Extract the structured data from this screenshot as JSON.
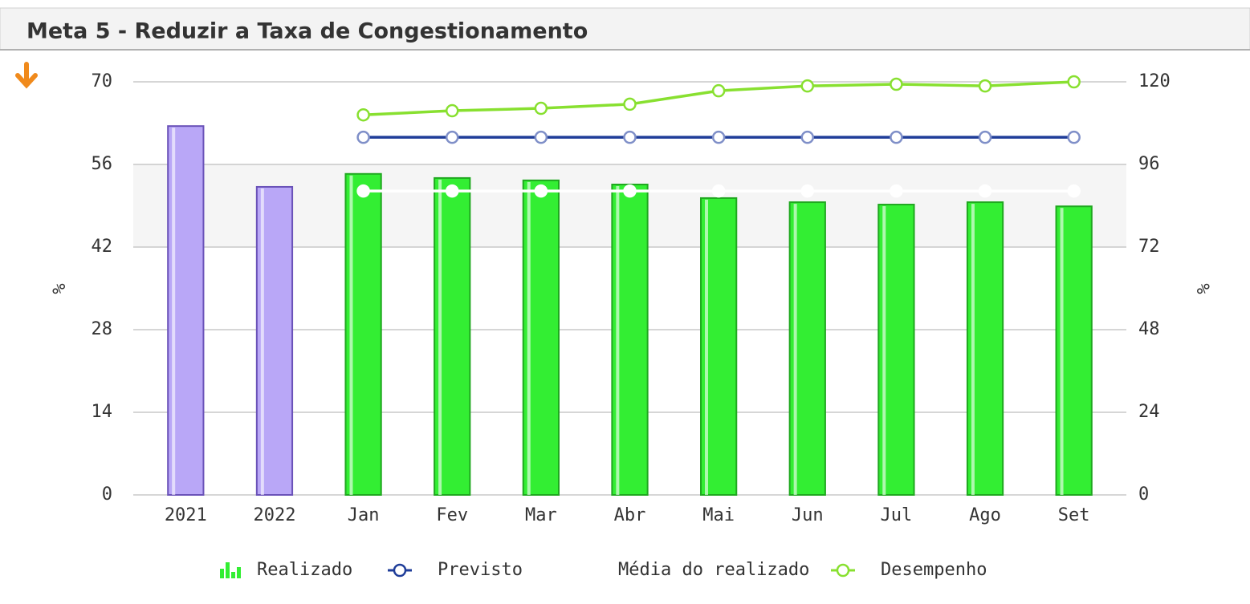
{
  "chart_data": {
    "type": "combo",
    "title": "Meta 5 - Reduzir a Taxa de Congestionamento",
    "y_label": "%",
    "y2_label": "%",
    "categories": [
      "2021",
      "2022",
      "Jan",
      "Fev",
      "Mar",
      "Abr",
      "Mai",
      "Jun",
      "Jul",
      "Ago",
      "Set"
    ],
    "ylim": [
      0,
      70
    ],
    "yticks": [
      0,
      14,
      28,
      42,
      56,
      70
    ],
    "y2lim": [
      0,
      120
    ],
    "y2ticks": [
      0,
      24,
      48,
      72,
      96,
      120
    ],
    "grid": true,
    "legend": "bottom",
    "series": [
      {
        "name": "Realizado",
        "type": "bar",
        "color": "#33ee33",
        "colors": [
          "#b9a7f7",
          "#b9a7f7",
          "#33ee33",
          "#33ee33",
          "#33ee33",
          "#33ee33",
          "#33ee33",
          "#33ee33",
          "#33ee33",
          "#33ee33",
          "#33ee33"
        ],
        "values": [
          62.5,
          52.2,
          54.4,
          53.7,
          53.3,
          52.6,
          50.3,
          49.6,
          49.2,
          49.6,
          48.9
        ]
      },
      {
        "name": "Previsto",
        "type": "line",
        "color": "#1f3d99",
        "values": [
          null,
          null,
          60.6,
          60.6,
          60.6,
          60.6,
          60.6,
          60.6,
          60.6,
          60.6,
          60.6
        ]
      },
      {
        "name": "Média do realizado",
        "type": "line",
        "color": "#ffffff",
        "values": [
          null,
          null,
          51.5,
          51.5,
          51.5,
          51.5,
          51.5,
          51.5,
          51.5,
          51.5,
          51.5
        ]
      },
      {
        "name": "Desempenho",
        "type": "line",
        "color": "#88e030",
        "axis": "y2",
        "values": [
          null,
          null,
          110.4,
          111.6,
          112.3,
          113.5,
          117.4,
          118.8,
          119.3,
          118.8,
          120.0
        ]
      }
    ]
  }
}
